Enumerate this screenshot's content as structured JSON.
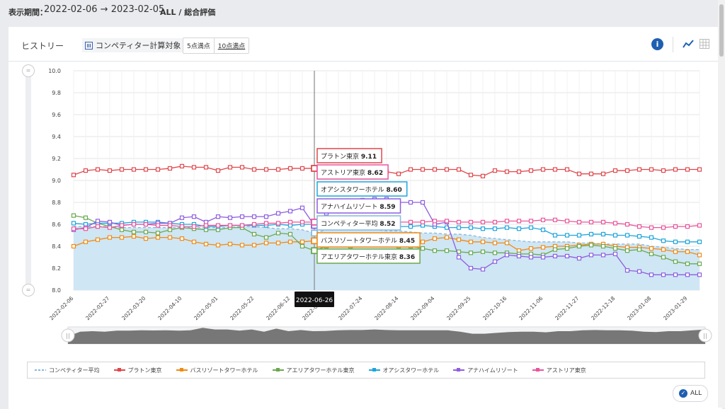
{
  "header": {
    "period_label": "表示期間：",
    "date_range": "2022-02-06 → 2023-02-05",
    "breadcrumb": "ALL / 総合評価"
  },
  "panel": {
    "title": "ヒストリー",
    "competitor_button": "コンペティター計算対象",
    "scale_5": "5点満点",
    "scale_10": "10点満点",
    "info_label": "i",
    "all_button": "ALL"
  },
  "hover": {
    "date": "2022-06-26",
    "tooltips": [
      {
        "name": "プラトン東京",
        "value": "9.11",
        "color": "#e0474c"
      },
      {
        "name": "アストリア東京",
        "value": "8.62",
        "color": "#e9559c"
      },
      {
        "name": "オアシスタワーホテル",
        "value": "8.60",
        "color": "#1fa5dc"
      },
      {
        "name": "アナハイムリゾート",
        "value": "8.59",
        "color": "#8e5ee0"
      },
      {
        "name": "コンペティター平均",
        "value": "8.52",
        "color": "#86b9dc"
      },
      {
        "name": "バスリゾートタワーホテル",
        "value": "8.45",
        "color": "#f18a14"
      },
      {
        "name": "アエリアタワーホテル東京",
        "value": "8.36",
        "color": "#6aa84f"
      }
    ]
  },
  "chart_data": {
    "type": "line",
    "ylim": [
      8.0,
      10.0
    ],
    "yticks": [
      "8.0",
      "8.2",
      "8.4",
      "8.6",
      "8.8",
      "9.0",
      "9.2",
      "9.4",
      "9.6",
      "9.8",
      "10.0"
    ],
    "x_tick_labels": [
      "2022-02-06",
      "2022-02-27",
      "2022-03-20",
      "2022-04-10",
      "2022-05-01",
      "2022-05-22",
      "2022-06-12",
      "2022-07-03",
      "2022-07-24",
      "2022-08-14",
      "2022-09-04",
      "2022-09-25",
      "2022-10-16",
      "2022-11-06",
      "2022-11-27",
      "2022-12-18",
      "2023-01-08",
      "2023-01-29"
    ],
    "n_points": 53,
    "hover_index": 20,
    "series": [
      {
        "name": "コンペティター平均",
        "color": "#86b9dc",
        "dashed": true,
        "area": true,
        "values": [
          8.58,
          8.58,
          8.58,
          8.58,
          8.57,
          8.57,
          8.57,
          8.57,
          8.57,
          8.57,
          8.57,
          8.57,
          8.57,
          8.57,
          8.58,
          8.58,
          8.57,
          8.56,
          8.56,
          8.55,
          8.52,
          8.55,
          8.56,
          8.56,
          8.55,
          8.55,
          8.54,
          8.54,
          8.53,
          8.52,
          8.52,
          8.51,
          8.51,
          8.5,
          8.48,
          8.47,
          8.46,
          8.45,
          8.44,
          8.44,
          8.44,
          8.44,
          8.43,
          8.43,
          8.42,
          8.42,
          8.42,
          8.42,
          8.4,
          8.39,
          8.38,
          8.37,
          8.37
        ]
      },
      {
        "name": "プラトン東京",
        "color": "#e0474c",
        "values": [
          9.05,
          9.09,
          9.1,
          9.09,
          9.1,
          9.1,
          9.1,
          9.1,
          9.11,
          9.13,
          9.12,
          9.12,
          9.09,
          9.12,
          9.12,
          9.1,
          9.1,
          9.1,
          9.11,
          9.11,
          9.11,
          9.12,
          9.11,
          9.1,
          9.09,
          9.09,
          9.08,
          9.06,
          9.1,
          9.1,
          9.1,
          9.1,
          9.1,
          9.05,
          9.04,
          9.09,
          9.08,
          9.08,
          9.09,
          9.1,
          9.1,
          9.1,
          9.06,
          9.06,
          9.06,
          9.09,
          9.09,
          9.1,
          9.1,
          9.09,
          9.1,
          9.1,
          9.1
        ]
      },
      {
        "name": "バスリゾートタワーホテル",
        "color": "#f18a14",
        "values": [
          8.4,
          8.44,
          8.46,
          8.48,
          8.48,
          8.49,
          8.47,
          8.48,
          8.48,
          8.47,
          8.44,
          8.42,
          8.41,
          8.42,
          8.41,
          8.41,
          8.43,
          8.43,
          8.44,
          8.44,
          8.45,
          8.45,
          8.44,
          8.44,
          8.45,
          8.45,
          8.46,
          8.46,
          8.46,
          8.44,
          8.47,
          8.48,
          8.46,
          8.44,
          8.44,
          8.43,
          8.43,
          8.36,
          8.38,
          8.39,
          8.4,
          8.4,
          8.41,
          8.42,
          8.42,
          8.4,
          8.39,
          8.39,
          8.38,
          8.37,
          8.35,
          8.35,
          8.32
        ]
      },
      {
        "name": "アエリアタワーホテル東京",
        "color": "#6aa84f",
        "values": [
          8.68,
          8.66,
          8.61,
          8.58,
          8.55,
          8.53,
          8.53,
          8.52,
          8.55,
          8.57,
          8.56,
          8.55,
          8.55,
          8.57,
          8.57,
          8.51,
          8.48,
          8.52,
          8.51,
          8.4,
          8.36,
          8.4,
          8.41,
          8.4,
          8.41,
          8.42,
          8.41,
          8.4,
          8.4,
          8.38,
          8.36,
          8.36,
          8.35,
          8.34,
          8.35,
          8.34,
          8.34,
          8.33,
          8.33,
          8.32,
          8.37,
          8.38,
          8.4,
          8.41,
          8.4,
          8.38,
          8.36,
          8.37,
          8.33,
          8.3,
          8.26,
          8.24,
          8.24
        ]
      },
      {
        "name": "オアシスタワーホテル",
        "color": "#1fa5dc",
        "values": [
          8.61,
          8.6,
          8.61,
          8.61,
          8.61,
          8.62,
          8.62,
          8.62,
          8.61,
          8.6,
          8.6,
          8.58,
          8.58,
          8.59,
          8.59,
          8.59,
          8.59,
          8.6,
          8.59,
          8.6,
          8.6,
          8.59,
          8.6,
          8.6,
          8.59,
          8.59,
          8.59,
          8.58,
          8.58,
          8.59,
          8.58,
          8.57,
          8.57,
          8.57,
          8.56,
          8.56,
          8.57,
          8.56,
          8.57,
          8.55,
          8.5,
          8.5,
          8.5,
          8.51,
          8.51,
          8.5,
          8.5,
          8.49,
          8.48,
          8.45,
          8.44,
          8.44,
          8.44
        ]
      },
      {
        "name": "アナハイムリゾート",
        "color": "#8e5ee0",
        "values": [
          8.55,
          8.57,
          8.63,
          8.62,
          8.59,
          8.6,
          8.6,
          8.61,
          8.61,
          8.66,
          8.67,
          8.62,
          8.67,
          8.66,
          8.67,
          8.67,
          8.67,
          8.7,
          8.72,
          8.75,
          8.59,
          8.7,
          8.76,
          8.79,
          8.82,
          8.83,
          8.83,
          8.8,
          8.8,
          8.8,
          8.6,
          8.62,
          8.3,
          8.2,
          8.19,
          8.26,
          8.32,
          8.31,
          8.3,
          8.3,
          8.31,
          8.31,
          8.29,
          8.32,
          8.32,
          8.33,
          8.18,
          8.17,
          8.14,
          8.14,
          8.14,
          8.14,
          8.14
        ]
      },
      {
        "name": "アストリア東京",
        "color": "#e9559c",
        "values": [
          8.56,
          8.56,
          8.58,
          8.57,
          8.59,
          8.6,
          8.6,
          8.59,
          8.59,
          8.58,
          8.58,
          8.59,
          8.59,
          8.59,
          8.59,
          8.6,
          8.61,
          8.61,
          8.62,
          8.62,
          8.62,
          8.62,
          8.63,
          8.61,
          8.62,
          8.62,
          8.63,
          8.62,
          8.62,
          8.62,
          8.63,
          8.63,
          8.62,
          8.62,
          8.62,
          8.62,
          8.63,
          8.63,
          8.63,
          8.64,
          8.64,
          8.63,
          8.62,
          8.62,
          8.62,
          8.61,
          8.6,
          8.58,
          8.57,
          8.57,
          8.58,
          8.58,
          8.59
        ]
      }
    ],
    "navigator": [
      0.45,
      0.72,
      0.75,
      0.72,
      0.78,
      0.78,
      0.8,
      0.79,
      0.8,
      0.78,
      0.8,
      0.95,
      0.85,
      0.85,
      0.78,
      0.85,
      0.72,
      0.9,
      0.75,
      0.82,
      0.75,
      0.76,
      0.8,
      0.82,
      0.82,
      0.85,
      0.82,
      0.8,
      0.8,
      0.8,
      0.8,
      0.8,
      0.72,
      0.6,
      0.6,
      0.65,
      0.7,
      0.72,
      0.72,
      0.68,
      0.75,
      0.75,
      0.8,
      0.82,
      0.8,
      0.8,
      0.78,
      0.72,
      0.7,
      0.75,
      0.75,
      0.8,
      0.85
    ]
  }
}
